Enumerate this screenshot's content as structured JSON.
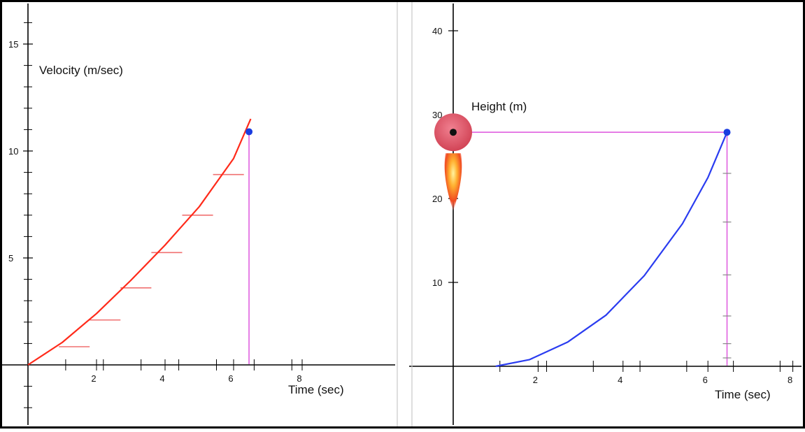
{
  "chart_data": [
    {
      "type": "line",
      "title": "",
      "ylabel": "Velocity (m/sec)",
      "xlabel": "Time (sec)",
      "xlim": [
        0,
        8
      ],
      "ylim": [
        -3,
        17
      ],
      "x_ticks": [
        2,
        4,
        6,
        8
      ],
      "y_ticks": [
        5,
        10,
        15
      ],
      "series": [
        {
          "color": "#ff2a1a",
          "x": [
            0,
            1,
            2,
            3,
            4,
            5,
            6,
            6.5
          ],
          "y": [
            0,
            1.05,
            2.4,
            3.95,
            5.6,
            7.4,
            9.65,
            11.5
          ]
        }
      ],
      "step_segments": [
        {
          "x0": 0.9,
          "x1": 1.8,
          "y": 0.85
        },
        {
          "x0": 1.8,
          "x1": 2.7,
          "y": 2.1
        },
        {
          "x0": 2.7,
          "x1": 3.6,
          "y": 3.6
        },
        {
          "x0": 3.6,
          "x1": 4.5,
          "y": 5.25
        },
        {
          "x0": 4.5,
          "x1": 5.4,
          "y": 7.0
        },
        {
          "x0": 5.4,
          "x1": 6.3,
          "y": 8.9
        }
      ],
      "marker": {
        "x": 6.45,
        "y": 10.9,
        "color": "#1a3ce0"
      },
      "guide_color": "#e060e0"
    },
    {
      "type": "line",
      "title": "",
      "ylabel": "Height (m)",
      "xlabel": "Time (sec)",
      "xlim": [
        0,
        8
      ],
      "ylim": [
        -7,
        42
      ],
      "x_ticks": [
        2,
        4,
        6,
        8
      ],
      "y_ticks": [
        10,
        20,
        30,
        40
      ],
      "series": [
        {
          "color": "#2a3cf0",
          "x": [
            1.0,
            1.8,
            2.7,
            3.6,
            4.5,
            5.4,
            6.0,
            6.45
          ],
          "y": [
            0,
            0.8,
            2.9,
            6.1,
            10.8,
            17.0,
            22.5,
            27.9
          ]
        }
      ],
      "marker": {
        "x": 6.45,
        "y": 27.9,
        "color": "#1a3ce0"
      },
      "guide_ticks_y": [
        1,
        2.7,
        6,
        10.9,
        17.2,
        23.0
      ],
      "guide_color": "#e060e0",
      "rocket": {
        "x": 0,
        "y": 27.9,
        "color": "#d94a5a"
      }
    }
  ]
}
